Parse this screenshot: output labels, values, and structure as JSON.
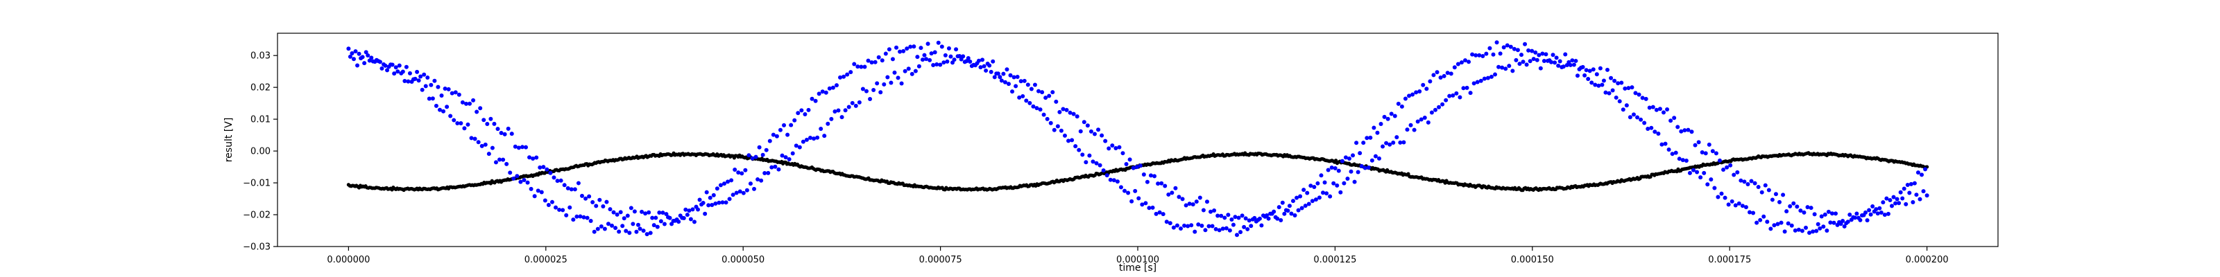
{
  "chart_data": {
    "type": "scatter",
    "title": "",
    "xlabel": "time [s]",
    "ylabel": "result [V]",
    "xlim": [
      -9e-06,
      0.000209
    ],
    "ylim": [
      -0.03,
      0.037
    ],
    "grid": false,
    "legend": "none",
    "x_ticks": [
      0.0,
      2.5e-05,
      5e-05,
      7.5e-05,
      0.0001,
      0.000125,
      0.00015,
      0.000175,
      0.0002
    ],
    "x_tick_labels": [
      "0.000000",
      "0.000025",
      "0.000050",
      "0.000075",
      "0.000100",
      "0.000125",
      "0.000150",
      "0.000175",
      "0.000200"
    ],
    "y_ticks": [
      -0.03,
      -0.02,
      -0.01,
      0.0,
      0.01,
      0.02,
      0.03
    ],
    "y_tick_labels": [
      "−0.03",
      "−0.02",
      "−0.01",
      "0.00",
      "0.01",
      "0.02",
      "0.03"
    ],
    "series": [
      {
        "color": "#0000ff",
        "x_range": [
          0.0,
          0.0002
        ],
        "n_points": 900,
        "approx_shape": "two interleaved noisy sinusoids of period ~0.000075 s, amplitude ~0.028 V, offset ~0.0035 V",
        "sample_points": [
          [
            0.0,
            0.029
          ],
          [
            1e-05,
            0.023
          ],
          [
            2e-05,
            0.004
          ],
          [
            3e-05,
            -0.016
          ],
          [
            3.7e-05,
            -0.023
          ],
          [
            5e-05,
            -0.007
          ],
          [
            6e-05,
            0.014
          ],
          [
            7.5e-05,
            0.031
          ],
          [
            9e-05,
            0.018
          ],
          [
            0.0001,
            -0.005
          ],
          [
            0.000112,
            -0.023
          ],
          [
            0.000125,
            -0.01
          ],
          [
            0.000138,
            0.019
          ],
          [
            0.00015,
            0.031
          ],
          [
            0.000163,
            0.021
          ],
          [
            0.000175,
            0.004
          ],
          [
            0.000188,
            -0.021
          ],
          [
            0.0002,
            -0.017
          ]
        ]
      },
      {
        "color": "#000000",
        "x_range": [
          0.0,
          0.0002
        ],
        "n_points": 1200,
        "approx_shape": "smooth slow wave, period ~0.000071 s, amplitude ~0.0055 V, offset ~-0.0065 V",
        "sample_points": [
          [
            0.0,
            -0.012
          ],
          [
            2e-05,
            -0.009
          ],
          [
            4.3e-05,
            -0.001
          ],
          [
            6e-05,
            -0.008
          ],
          [
            7.8e-05,
            -0.012
          ],
          [
            0.0001,
            -0.005
          ],
          [
            0.000113,
            -0.001
          ],
          [
            0.000135,
            -0.008
          ],
          [
            0.00015,
            -0.012
          ],
          [
            0.000175,
            -0.008
          ],
          [
            0.000185,
            -0.003
          ],
          [
            0.0002,
            -0.002
          ]
        ]
      }
    ]
  }
}
